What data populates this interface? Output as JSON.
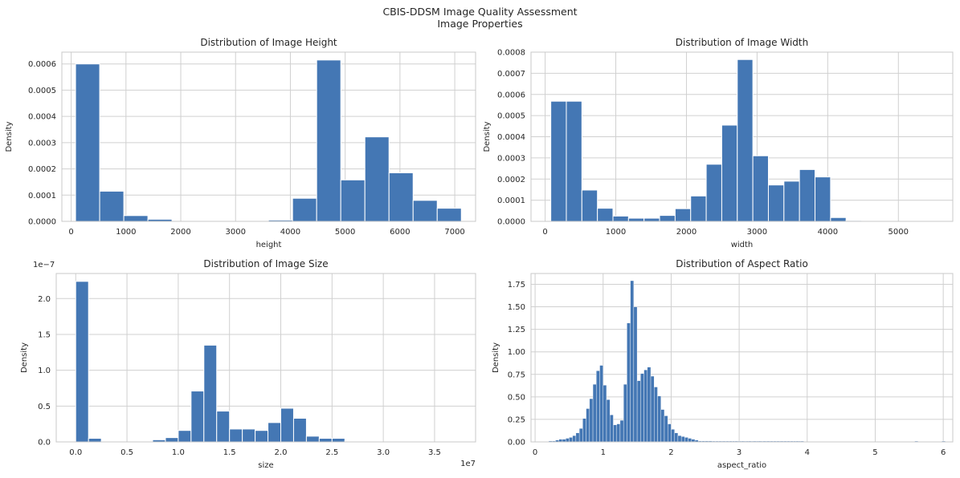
{
  "figure": {
    "title": "CBIS-DDSM Image Quality Assessment",
    "subtitle": "Image Properties",
    "bar_color": "#4477b4",
    "grid_color": "#d0d0d0",
    "frame_color": "#c8c8c8"
  },
  "chart_data": [
    {
      "type": "bar",
      "title": "Distribution of Image Height",
      "xlabel": "height",
      "ylabel": "Density",
      "xlim": [
        -170,
        7380
      ],
      "ylim": [
        0,
        0.000645
      ],
      "xticks": [
        0,
        1000,
        2000,
        3000,
        4000,
        5000,
        6000,
        7000
      ],
      "xtick_labels": [
        "0",
        "1000",
        "2000",
        "3000",
        "4000",
        "5000",
        "6000",
        "7000"
      ],
      "yticks": [
        0,
        0.0001,
        0.0002,
        0.0003,
        0.0004,
        0.0005,
        0.0006
      ],
      "ytick_labels": [
        "0.0000",
        "0.0001",
        "0.0002",
        "0.0003",
        "0.0004",
        "0.0005",
        "0.0006"
      ],
      "grid": true,
      "bin_edges": [
        80,
        520,
        960,
        1400,
        1840,
        2280,
        2720,
        3160,
        3600,
        4040,
        4480,
        4920,
        5360,
        5800,
        6240,
        6680,
        7120
      ],
      "values": [
        0.0006,
        0.000115,
        2.2e-05,
        8e-06,
        0,
        0,
        0,
        0,
        5e-06,
        8.8e-05,
        0.000615,
        0.000158,
        0.000322,
        0.000185,
        8e-05,
        5e-05
      ]
    },
    {
      "type": "bar",
      "title": "Distribution of Image Width",
      "xlabel": "width",
      "ylabel": "Density",
      "xlim": [
        -200,
        5770
      ],
      "ylim": [
        0,
        0.0008
      ],
      "xticks": [
        0,
        1000,
        2000,
        3000,
        4000,
        5000
      ],
      "xtick_labels": [
        "0",
        "1000",
        "2000",
        "3000",
        "4000",
        "5000"
      ],
      "yticks": [
        0,
        0.0001,
        0.0002,
        0.0003,
        0.0004,
        0.0005,
        0.0006,
        0.0007,
        0.0008
      ],
      "ytick_labels": [
        "0.0000",
        "0.0001",
        "0.0002",
        "0.0003",
        "0.0004",
        "0.0005",
        "0.0006",
        "0.0007",
        "0.0008"
      ],
      "grid": true,
      "bin_edges": [
        80,
        300,
        520,
        740,
        960,
        1180,
        1400,
        1620,
        1840,
        2060,
        2280,
        2500,
        2720,
        2940,
        3160,
        3380,
        3600,
        3820,
        4040,
        4260,
        4480,
        4700
      ],
      "values": [
        0.000568,
        0.000568,
        0.000148,
        6.2e-05,
        2.5e-05,
        1.5e-05,
        1.5e-05,
        2.8e-05,
        6e-05,
        0.00012,
        0.00027,
        0.000455,
        0.000765,
        0.00031,
        0.000172,
        0.00019,
        0.000245,
        0.00021,
        1.8e-05,
        4e-06,
        0
      ]
    },
    {
      "type": "bar",
      "title": "Distribution of Image Size",
      "xlabel": "size",
      "ylabel": "Density",
      "x_scale_label": "1e7",
      "y_scale_label": "1e−7",
      "xlim": [
        -0.19,
        3.9
      ],
      "ylim": [
        0,
        2.35
      ],
      "xticks": [
        0,
        0.5,
        1,
        1.5,
        2,
        2.5,
        3,
        3.5
      ],
      "xtick_labels": [
        "0.0",
        "0.5",
        "1.0",
        "1.5",
        "2.0",
        "2.5",
        "3.0",
        "3.5"
      ],
      "yticks": [
        0,
        0.5,
        1,
        1.5,
        2
      ],
      "ytick_labels": [
        "0.0",
        "0.5",
        "1.0",
        "1.5",
        "2.0"
      ],
      "grid": true,
      "bin_edges": [
        0,
        0.125,
        0.25,
        0.375,
        0.5,
        0.625,
        0.75,
        0.875,
        1.0,
        1.125,
        1.25,
        1.375,
        1.5,
        1.625,
        1.75,
        1.875,
        2.0,
        2.125,
        2.25,
        2.375,
        2.5,
        2.625,
        2.75,
        2.875,
        3.0
      ],
      "values": [
        2.24,
        0.05,
        0.01,
        0,
        0,
        0,
        0.03,
        0.06,
        0.16,
        0.71,
        1.35,
        0.43,
        0.18,
        0.18,
        0.16,
        0.27,
        0.47,
        0.33,
        0.08,
        0.05,
        0.05,
        0.01,
        0,
        0
      ]
    },
    {
      "type": "bar",
      "title": "Distribution of Aspect Ratio",
      "xlabel": "aspect_ratio",
      "ylabel": "Density",
      "xlim": [
        -0.06,
        6.14
      ],
      "ylim": [
        0,
        1.87
      ],
      "xticks": [
        0,
        1,
        2,
        3,
        4,
        5,
        6
      ],
      "xtick_labels": [
        "0",
        "1",
        "2",
        "3",
        "4",
        "5",
        "6"
      ],
      "yticks": [
        0,
        0.25,
        0.5,
        0.75,
        1,
        1.25,
        1.5,
        1.75
      ],
      "ytick_labels": [
        "0.00",
        "0.25",
        "0.50",
        "0.75",
        "1.00",
        "1.25",
        "1.50",
        "1.75"
      ],
      "grid": true,
      "bin_start": 0.2,
      "bin_width": 0.05,
      "values": [
        0.01,
        0.01,
        0.02,
        0.03,
        0.03,
        0.04,
        0.05,
        0.07,
        0.1,
        0.15,
        0.26,
        0.37,
        0.48,
        0.64,
        0.79,
        0.85,
        0.63,
        0.47,
        0.3,
        0.19,
        0.2,
        0.24,
        0.64,
        1.32,
        1.79,
        1.5,
        0.68,
        0.76,
        0.8,
        0.83,
        0.73,
        0.61,
        0.51,
        0.36,
        0.29,
        0.2,
        0.14,
        0.1,
        0.07,
        0.06,
        0.05,
        0.04,
        0.03,
        0.02,
        0.01,
        0.01,
        0.01,
        0.01,
        0.005,
        0.005,
        0.005,
        0.005,
        0.005,
        0.004,
        0.004,
        0.004,
        0.003,
        0.003,
        0.003,
        0.003,
        0.002,
        0.002,
        0.002,
        0.002,
        0.002,
        0.002,
        0.002,
        0.002,
        0.002,
        0.002,
        0.002,
        0.002,
        0.002,
        0.002,
        0.002,
        0,
        0,
        0,
        0,
        0,
        0,
        0,
        0,
        0,
        0,
        0,
        0,
        0,
        0,
        0,
        0,
        0,
        0,
        0,
        0,
        0,
        0,
        0,
        0,
        0,
        0,
        0,
        0,
        0,
        0,
        0,
        0,
        0,
        0,
        0,
        0,
        0,
        0,
        0,
        0,
        0,
        0
      ],
      "outliers": [
        {
          "x": 2.93,
          "value": 0.004
        },
        {
          "x": 3.03,
          "value": 0.004
        },
        {
          "x": 3.13,
          "value": 0.004
        },
        {
          "x": 3.28,
          "value": 0.003
        },
        {
          "x": 3.83,
          "value": 0.006
        },
        {
          "x": 5.58,
          "value": 0.006
        },
        {
          "x": 5.98,
          "value": 0.006
        }
      ]
    }
  ]
}
